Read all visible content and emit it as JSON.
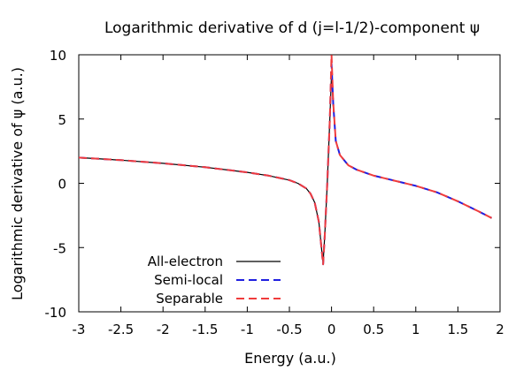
{
  "chart_data": {
    "type": "line",
    "title": "Logarithmic derivative of d (j=l-1/2)-component ψ",
    "xlabel": "Energy (a.u.)",
    "ylabel": "Logarithmic derivative of ψ (a.u.)",
    "xlim": [
      -3,
      2
    ],
    "ylim": [
      -10,
      10
    ],
    "xticks": [
      "-3",
      "-2.5",
      "-2",
      "-1.5",
      "-1",
      "-0.5",
      "0",
      "0.5",
      "1",
      "1.5",
      "2"
    ],
    "yticks": [
      "10",
      "5",
      "0",
      "-5",
      "-10"
    ],
    "grid": false,
    "legend_position": "bottom-left",
    "series": [
      {
        "name": "All-electron",
        "color": "#000000",
        "dash": "solid",
        "x": [
          -3.0,
          -2.5,
          -2.0,
          -1.5,
          -1.0,
          -0.75,
          -0.5,
          -0.4,
          -0.3,
          -0.25,
          -0.2,
          -0.15,
          -0.12,
          -0.1,
          -0.08,
          -0.05,
          -0.02,
          0.0,
          0.02,
          0.05,
          0.1,
          0.2,
          0.3,
          0.5,
          0.75,
          1.0,
          1.25,
          1.5,
          1.75,
          1.9
        ],
        "y": [
          2.0,
          1.8,
          1.55,
          1.25,
          0.85,
          0.6,
          0.25,
          0.0,
          -0.4,
          -0.8,
          -1.5,
          -3.0,
          -5.0,
          -6.2,
          -4.0,
          0.0,
          5.0,
          8.5,
          6.0,
          3.3,
          2.2,
          1.4,
          1.05,
          0.6,
          0.2,
          -0.2,
          -0.7,
          -1.4,
          -2.2,
          -2.7
        ]
      },
      {
        "name": "Semi-local",
        "color": "#1f1fe0",
        "dash": "long",
        "x": [
          -3.0,
          -2.5,
          -2.0,
          -1.5,
          -1.0,
          -0.75,
          -0.5,
          -0.4,
          -0.3,
          -0.25,
          -0.2,
          -0.15,
          -0.12,
          -0.1,
          -0.08,
          -0.05,
          -0.02,
          0.0,
          0.02,
          0.05,
          0.1,
          0.2,
          0.3,
          0.5,
          0.75,
          1.0,
          1.25,
          1.5,
          1.75,
          1.9
        ],
        "y": [
          2.0,
          1.8,
          1.55,
          1.25,
          0.85,
          0.6,
          0.25,
          0.0,
          -0.4,
          -0.8,
          -1.5,
          -3.0,
          -5.0,
          -6.3,
          -4.0,
          0.0,
          5.0,
          9.3,
          6.2,
          3.3,
          2.2,
          1.4,
          1.05,
          0.6,
          0.2,
          -0.2,
          -0.7,
          -1.4,
          -2.2,
          -2.7
        ]
      },
      {
        "name": "Separable",
        "color": "#f03c3c",
        "dash": "long",
        "x": [
          -3.0,
          -2.5,
          -2.0,
          -1.5,
          -1.0,
          -0.75,
          -0.5,
          -0.4,
          -0.3,
          -0.25,
          -0.2,
          -0.15,
          -0.12,
          -0.1,
          -0.08,
          -0.05,
          -0.02,
          0.0,
          0.02,
          0.05,
          0.1,
          0.2,
          0.3,
          0.5,
          0.75,
          1.0,
          1.25,
          1.5,
          1.75,
          1.9
        ],
        "y": [
          2.0,
          1.8,
          1.55,
          1.25,
          0.85,
          0.6,
          0.25,
          0.0,
          -0.4,
          -0.8,
          -1.5,
          -3.0,
          -5.0,
          -6.3,
          -4.0,
          0.0,
          5.0,
          10.0,
          6.3,
          3.3,
          2.2,
          1.4,
          1.05,
          0.6,
          0.2,
          -0.2,
          -0.7,
          -1.4,
          -2.2,
          -2.7
        ]
      }
    ]
  }
}
